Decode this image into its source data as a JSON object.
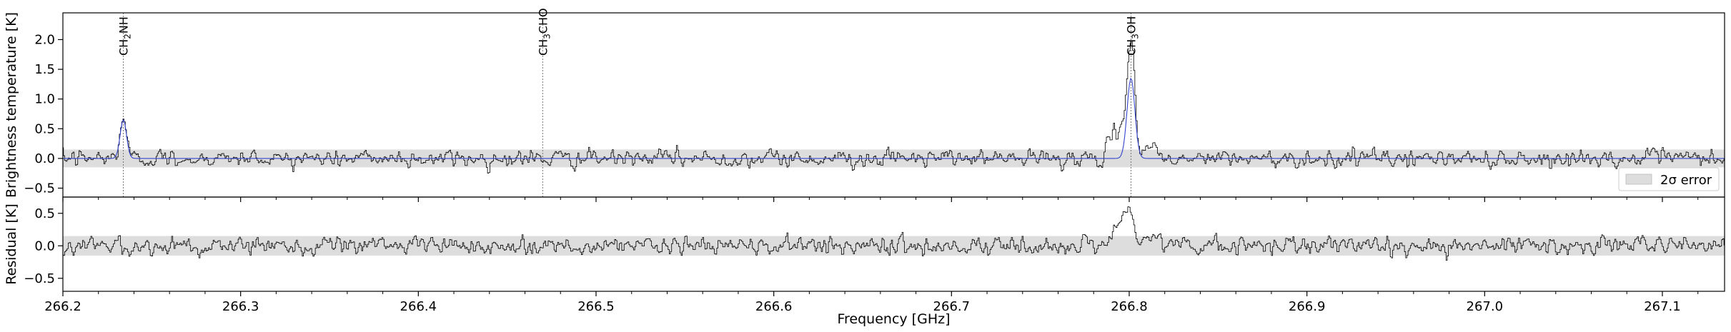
{
  "chart_data": {
    "type": "line",
    "x_range": [
      266.2,
      267.135
    ],
    "xlabel": "Frequency [GHz]",
    "x_ticks": [
      "266.2",
      "266.3",
      "266.4",
      "266.5",
      "266.6",
      "266.7",
      "266.8",
      "266.9",
      "267.0",
      "267.1"
    ],
    "x_tick_values": [
      266.2,
      266.3,
      266.4,
      266.5,
      266.6,
      266.7,
      266.8,
      266.9,
      267.0,
      267.1
    ],
    "panels": [
      {
        "name": "spectrum",
        "ylabel": "Brightness temperature [K]",
        "ylim": [
          -0.65,
          2.45
        ],
        "y_ticks": [
          "−0.5",
          "0.0",
          "0.5",
          "1.0",
          "1.5",
          "2.0"
        ],
        "y_tick_values": [
          -0.5,
          0.0,
          0.5,
          1.0,
          1.5,
          2.0
        ],
        "error_band": [
          -0.15,
          0.15
        ],
        "legend": {
          "placement": "lower-right",
          "entries": [
            {
              "label": "2σ error",
              "color": "#dddddd"
            }
          ]
        },
        "line_markers": [
          {
            "x": 266.234,
            "label": "CH2NH",
            "species": "CH",
            "sub": "2",
            "rest": "NH"
          },
          {
            "x": 266.47,
            "label": "CH3CHO",
            "species": "CH",
            "sub": "3",
            "rest": "CHO"
          },
          {
            "x": 266.801,
            "label": "CH3OH",
            "species": "CH",
            "sub": "3",
            "rest": "OH"
          }
        ],
        "series": [
          {
            "role": "observed",
            "color": "#000000",
            "noise_sigma": 0.07,
            "features": [
              {
                "x": 266.234,
                "peak": 0.7,
                "width": 0.0018
              },
              {
                "x": 266.801,
                "peak": 2.0,
                "width": 0.0022
              },
              {
                "x": 266.793,
                "peak": 0.4,
                "width": 0.004
              },
              {
                "x": 266.812,
                "peak": 0.25,
                "width": 0.003
              }
            ]
          },
          {
            "role": "model",
            "color": "#3344cc",
            "features": [
              {
                "x": 266.234,
                "peak": 0.65,
                "width": 0.0018
              },
              {
                "x": 266.801,
                "peak": 1.35,
                "width": 0.0022
              }
            ]
          }
        ]
      },
      {
        "name": "residual",
        "ylabel": "Residual [K]",
        "ylim": [
          -0.7,
          0.75
        ],
        "y_ticks": [
          "−0.5",
          "0.0",
          "0.5"
        ],
        "y_tick_values": [
          -0.5,
          0.0,
          0.5
        ],
        "error_band": [
          -0.15,
          0.15
        ],
        "series": [
          {
            "role": "residual",
            "color": "#000000",
            "noise_sigma": 0.07,
            "features": [
              {
                "x": 266.8,
                "peak": 0.55,
                "width": 0.0025
              },
              {
                "x": 266.793,
                "peak": 0.3,
                "width": 0.004
              },
              {
                "x": 266.812,
                "peak": 0.2,
                "width": 0.003
              }
            ]
          }
        ]
      }
    ]
  }
}
